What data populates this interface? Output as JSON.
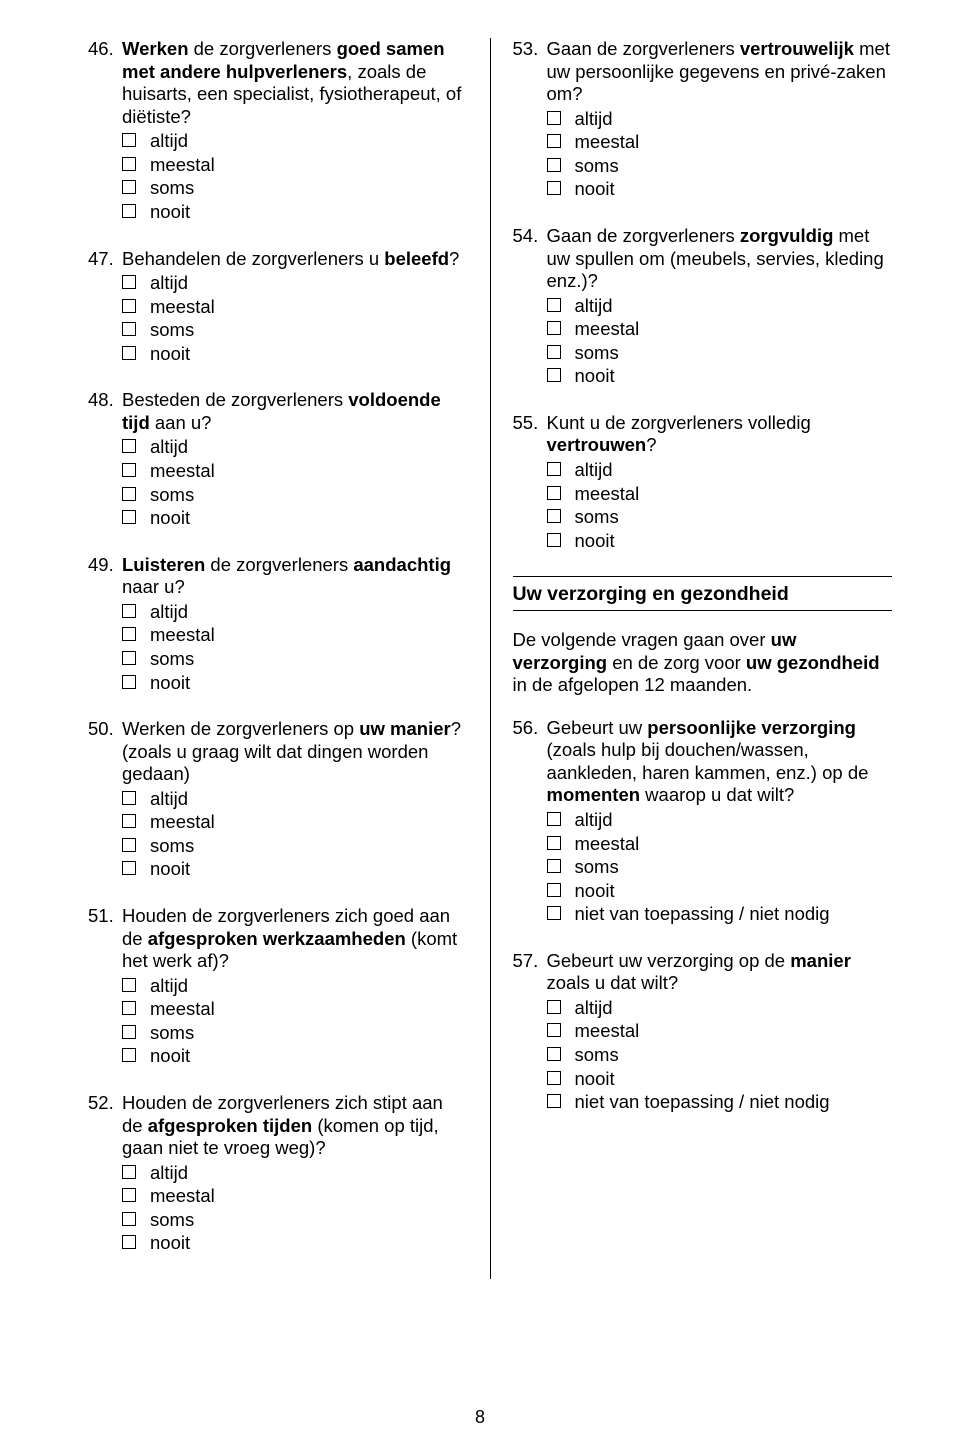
{
  "pageNumber": "8",
  "options": {
    "standard": [
      "altijd",
      "meestal",
      "soms",
      "nooit"
    ],
    "extended": [
      "altijd",
      "meestal",
      "soms",
      "nooit",
      "niet van toepassing / niet nodig"
    ]
  },
  "left": [
    {
      "num": "46.",
      "parts": [
        {
          "b": true,
          "t": "Werken"
        },
        {
          "b": false,
          "t": " de zorgverleners "
        },
        {
          "b": true,
          "t": "goed samen met andere hulpverleners"
        },
        {
          "b": false,
          "t": ", zoals de huisarts, een specialist, fysiotherapeut, of diëtiste?"
        }
      ],
      "opts": "standard"
    },
    {
      "num": "47.",
      "parts": [
        {
          "b": false,
          "t": "Behandelen de zorgverleners u "
        },
        {
          "b": true,
          "t": "beleefd"
        },
        {
          "b": false,
          "t": "?"
        }
      ],
      "opts": "standard"
    },
    {
      "num": "48.",
      "parts": [
        {
          "b": false,
          "t": "Besteden de zorgverleners "
        },
        {
          "b": true,
          "t": "voldoende tijd"
        },
        {
          "b": false,
          "t": " aan u?"
        }
      ],
      "opts": "standard"
    },
    {
      "num": "49.",
      "parts": [
        {
          "b": true,
          "t": "Luisteren"
        },
        {
          "b": false,
          "t": " de zorgverleners "
        },
        {
          "b": true,
          "t": "aandachtig"
        },
        {
          "b": false,
          "t": " naar u?"
        }
      ],
      "opts": "standard"
    },
    {
      "num": "50.",
      "parts": [
        {
          "b": false,
          "t": "Werken de zorgverleners op "
        },
        {
          "b": true,
          "t": "uw manier"
        },
        {
          "b": false,
          "t": "? (zoals u graag wilt dat dingen worden gedaan)"
        }
      ],
      "opts": "standard"
    },
    {
      "num": "51.",
      "parts": [
        {
          "b": false,
          "t": "Houden de zorgverleners zich goed aan de "
        },
        {
          "b": true,
          "t": "afgesproken werkzaamheden"
        },
        {
          "b": false,
          "t": " (komt het werk af)?"
        }
      ],
      "opts": "standard"
    },
    {
      "num": "52.",
      "parts": [
        {
          "b": false,
          "t": "Houden de zorgverleners zich stipt aan de "
        },
        {
          "b": true,
          "t": "afgesproken tijden"
        },
        {
          "b": false,
          "t": " (komen op tijd, gaan niet te vroeg weg)?"
        }
      ],
      "opts": "standard"
    }
  ],
  "rightTop": [
    {
      "num": "53.",
      "parts": [
        {
          "b": false,
          "t": "Gaan de zorgverleners "
        },
        {
          "b": true,
          "t": "vertrouwelijk"
        },
        {
          "b": false,
          "t": " met uw persoonlijke gegevens en privé-zaken om?"
        }
      ],
      "opts": "standard"
    },
    {
      "num": "54.",
      "parts": [
        {
          "b": false,
          "t": "Gaan de zorgverleners "
        },
        {
          "b": true,
          "t": "zorgvuldig"
        },
        {
          "b": false,
          "t": " met uw spullen om (meubels, servies, kleding enz.)?"
        }
      ],
      "opts": "standard"
    },
    {
      "num": "55.",
      "parts": [
        {
          "b": false,
          "t": "Kunt u de zorgverleners volledig "
        },
        {
          "b": true,
          "t": "vertrouwen"
        },
        {
          "b": false,
          "t": "?"
        }
      ],
      "opts": "standard"
    }
  ],
  "section": {
    "title": "Uw verzorging en gezondheid",
    "introParts": [
      {
        "b": false,
        "t": "De volgende vragen gaan over "
      },
      {
        "b": true,
        "t": "uw verzorging"
      },
      {
        "b": false,
        "t": " en de zorg voor "
      },
      {
        "b": true,
        "t": "uw gezondheid"
      },
      {
        "b": false,
        "t": " in de afgelopen 12 maanden."
      }
    ]
  },
  "rightBottom": [
    {
      "num": "56.",
      "parts": [
        {
          "b": false,
          "t": "Gebeurt uw "
        },
        {
          "b": true,
          "t": "persoonlijke verzorging"
        },
        {
          "b": false,
          "t": " (zoals hulp bij douchen/wassen, aankleden, haren kammen, enz.) op de "
        },
        {
          "b": true,
          "t": "momenten"
        },
        {
          "b": false,
          "t": " waarop u dat wilt?"
        }
      ],
      "opts": "extended"
    },
    {
      "num": "57.",
      "parts": [
        {
          "b": false,
          "t": "Gebeurt uw verzorging op de "
        },
        {
          "b": true,
          "t": "manier"
        },
        {
          "b": false,
          "t": " zoals u dat wilt?"
        }
      ],
      "opts": "extended"
    }
  ]
}
